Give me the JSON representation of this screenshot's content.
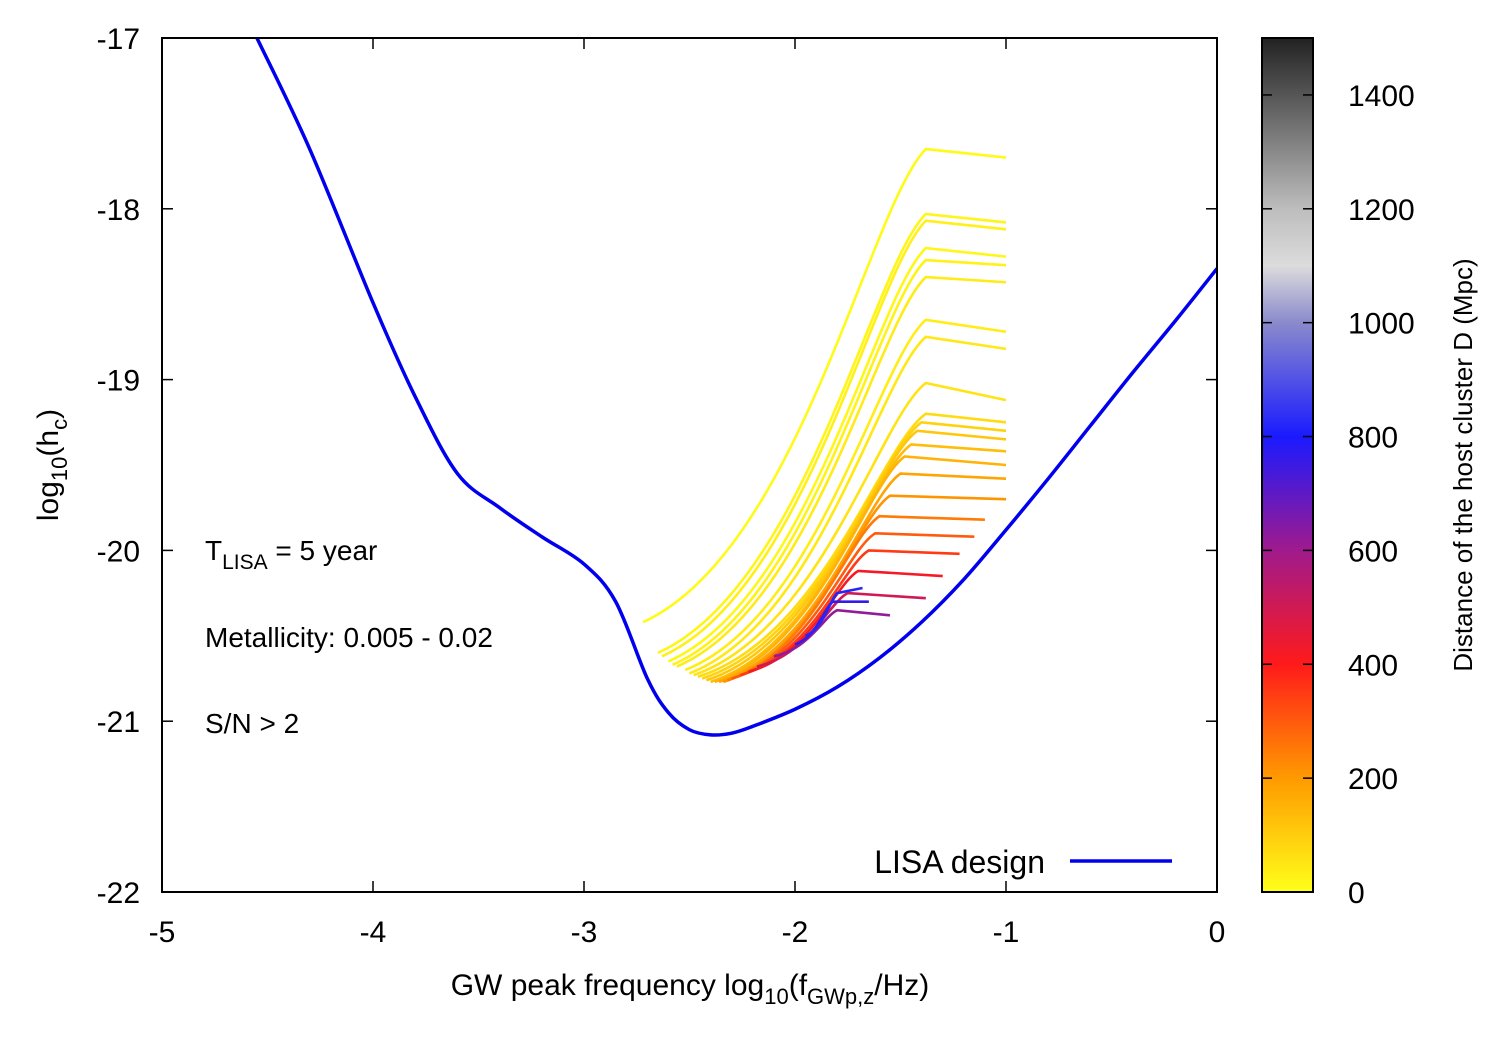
{
  "chart_data": {
    "type": "line",
    "xlabel": {
      "main": "GW peak frequency log",
      "sub1": "10",
      "mid": "(f",
      "sub2": "GWp,z",
      "end": "/Hz)"
    },
    "ylabel": {
      "main": "log",
      "sub1": "10",
      "mid": "(h",
      "sub2": "c",
      "end": ")"
    },
    "xlim": [
      -5,
      0
    ],
    "ylim": [
      -22,
      -17
    ],
    "x_ticks": [
      {
        "value": -5,
        "label": "-5"
      },
      {
        "value": -4,
        "label": "-4"
      },
      {
        "value": -3,
        "label": "-3"
      },
      {
        "value": -2,
        "label": "-2"
      },
      {
        "value": -1,
        "label": "-1"
      },
      {
        "value": 0,
        "label": "0"
      }
    ],
    "y_ticks": [
      {
        "value": -22,
        "label": "-22"
      },
      {
        "value": -21,
        "label": "-21"
      },
      {
        "value": -20,
        "label": "-20"
      },
      {
        "value": -19,
        "label": "-19"
      },
      {
        "value": -18,
        "label": "-18"
      },
      {
        "value": -17,
        "label": "-17"
      }
    ],
    "grid": false,
    "legend": {
      "position": "bottom-right",
      "entries": [
        {
          "label": "LISA design",
          "color": "#0000ee"
        }
      ]
    },
    "annotations": {
      "t_lisa": {
        "main": "T",
        "sub": "LISA",
        "end": " = 5 year"
      },
      "metallicity": "Metallicity: 0.005 - 0.02",
      "snr": "S/N > 2"
    },
    "colorbar": {
      "label": "Distance of the host cluster D (Mpc)",
      "range": [
        0,
        1500
      ],
      "ticks": [
        {
          "value": 0,
          "label": "0"
        },
        {
          "value": 200,
          "label": "200"
        },
        {
          "value": 400,
          "label": "400"
        },
        {
          "value": 600,
          "label": "600"
        },
        {
          "value": 800,
          "label": "800"
        },
        {
          "value": 1000,
          "label": "1000"
        },
        {
          "value": 1200,
          "label": "1200"
        },
        {
          "value": 1400,
          "label": "1400"
        }
      ],
      "stops": [
        {
          "value": 0,
          "color": "#ffff1a"
        },
        {
          "value": 200,
          "color": "#ff9a00"
        },
        {
          "value": 400,
          "color": "#ff1a1a"
        },
        {
          "value": 600,
          "color": "#a01a8c"
        },
        {
          "value": 800,
          "color": "#1a1aff"
        },
        {
          "value": 1000,
          "color": "#8a8acc"
        },
        {
          "value": 1100,
          "color": "#dcdcdc"
        },
        {
          "value": 1200,
          "color": "#bdbdbd"
        },
        {
          "value": 1500,
          "color": "#222222"
        }
      ]
    },
    "lisa_curve": {
      "name": "LISA design",
      "color": "#0000ee",
      "x": [
        -4.55,
        -4.3,
        -4.0,
        -3.8,
        -3.6,
        -3.4,
        -3.2,
        -3.0,
        -2.85,
        -2.7,
        -2.6,
        -2.5,
        -2.4,
        -2.3,
        -2.2,
        -2.0,
        -1.8,
        -1.6,
        -1.4,
        -1.2,
        -1.0,
        -0.8,
        -0.6,
        -0.4,
        -0.2,
        0.0
      ],
      "y": [
        -17.0,
        -17.65,
        -18.55,
        -19.1,
        -19.55,
        -19.75,
        -19.92,
        -20.08,
        -20.3,
        -20.75,
        -20.95,
        -21.05,
        -21.08,
        -21.07,
        -21.03,
        -20.93,
        -20.8,
        -20.63,
        -20.42,
        -20.17,
        -19.88,
        -19.58,
        -19.27,
        -18.96,
        -18.66,
        -18.35
      ]
    },
    "tracks": [
      {
        "x0": -2.72,
        "y0": -20.42,
        "x1": -1.38,
        "y1": -17.65,
        "x2": -1.0,
        "y2": -17.7,
        "d": 10
      },
      {
        "x0": -2.65,
        "y0": -20.6,
        "x1": -1.38,
        "y1": -18.03,
        "x2": -1.0,
        "y2": -18.08,
        "d": 20
      },
      {
        "x0": -2.63,
        "y0": -20.62,
        "x1": -1.38,
        "y1": -18.07,
        "x2": -1.0,
        "y2": -18.12,
        "d": 30
      },
      {
        "x0": -2.6,
        "y0": -20.65,
        "x1": -1.38,
        "y1": -18.23,
        "x2": -1.0,
        "y2": -18.28,
        "d": 15
      },
      {
        "x0": -2.58,
        "y0": -20.67,
        "x1": -1.38,
        "y1": -18.3,
        "x2": -1.0,
        "y2": -18.33,
        "d": 25
      },
      {
        "x0": -2.56,
        "y0": -20.68,
        "x1": -1.38,
        "y1": -18.4,
        "x2": -1.0,
        "y2": -18.43,
        "d": 40
      },
      {
        "x0": -2.52,
        "y0": -20.7,
        "x1": -1.38,
        "y1": -18.65,
        "x2": -1.0,
        "y2": -18.72,
        "d": 35
      },
      {
        "x0": -2.5,
        "y0": -20.72,
        "x1": -1.38,
        "y1": -18.75,
        "x2": -1.0,
        "y2": -18.82,
        "d": 45
      },
      {
        "x0": -2.48,
        "y0": -20.73,
        "x1": -1.38,
        "y1": -19.02,
        "x2": -1.0,
        "y2": -19.12,
        "d": 55
      },
      {
        "x0": -2.46,
        "y0": -20.74,
        "x1": -1.38,
        "y1": -19.2,
        "x2": -1.0,
        "y2": -19.25,
        "d": 70
      },
      {
        "x0": -2.44,
        "y0": -20.75,
        "x1": -1.4,
        "y1": -19.25,
        "x2": -1.0,
        "y2": -19.3,
        "d": 90
      },
      {
        "x0": -2.42,
        "y0": -20.76,
        "x1": -1.42,
        "y1": -19.3,
        "x2": -1.0,
        "y2": -19.35,
        "d": 110
      },
      {
        "x0": -2.4,
        "y0": -20.77,
        "x1": -1.45,
        "y1": -19.38,
        "x2": -1.0,
        "y2": -19.42,
        "d": 130
      },
      {
        "x0": -2.38,
        "y0": -20.77,
        "x1": -1.48,
        "y1": -19.45,
        "x2": -1.0,
        "y2": -19.5,
        "d": 150
      },
      {
        "x0": -2.36,
        "y0": -20.77,
        "x1": -1.5,
        "y1": -19.55,
        "x2": -1.0,
        "y2": -19.58,
        "d": 180
      },
      {
        "x0": -2.34,
        "y0": -20.77,
        "x1": -1.55,
        "y1": -19.68,
        "x2": -1.0,
        "y2": -19.7,
        "d": 210
      },
      {
        "x0": -2.32,
        "y0": -20.76,
        "x1": -1.6,
        "y1": -19.8,
        "x2": -1.1,
        "y2": -19.82,
        "d": 250
      },
      {
        "x0": -2.3,
        "y0": -20.75,
        "x1": -1.62,
        "y1": -19.9,
        "x2": -1.15,
        "y2": -19.92,
        "d": 300
      },
      {
        "x0": -2.26,
        "y0": -20.73,
        "x1": -1.65,
        "y1": -20.0,
        "x2": -1.22,
        "y2": -20.02,
        "d": 350
      },
      {
        "x0": -2.22,
        "y0": -20.71,
        "x1": -1.7,
        "y1": -20.12,
        "x2": -1.3,
        "y2": -20.15,
        "d": 420
      },
      {
        "x0": -2.18,
        "y0": -20.68,
        "x1": -1.75,
        "y1": -20.25,
        "x2": -1.38,
        "y2": -20.28,
        "d": 500
      },
      {
        "x0": -2.1,
        "y0": -20.62,
        "x1": -1.8,
        "y1": -20.35,
        "x2": -1.55,
        "y2": -20.38,
        "d": 620
      },
      {
        "x0": -2.0,
        "y0": -20.55,
        "x1": -1.82,
        "y1": -20.3,
        "x2": -1.65,
        "y2": -20.3,
        "d": 760
      },
      {
        "x0": -1.95,
        "y0": -20.5,
        "x1": -1.8,
        "y1": -20.25,
        "x2": -1.68,
        "y2": -20.22,
        "d": 820
      }
    ]
  }
}
